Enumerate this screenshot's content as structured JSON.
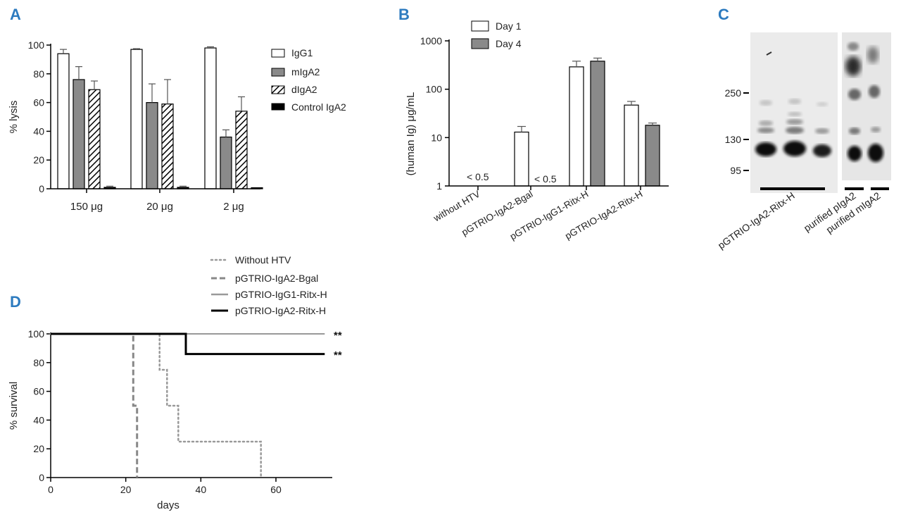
{
  "colors": {
    "panel_letter": "#2d7bbf",
    "axis": "#000000",
    "text": "#222222",
    "bar_white": "#ffffff",
    "bar_gray": "#8a8a8a",
    "bar_black": "#000000",
    "error_bar": "#555555",
    "line_gray": "#999999",
    "line_gray_dark": "#888888",
    "line_black": "#000000",
    "blot_bg": "#e9e9e9",
    "band_dark": "#111111",
    "band_mid": "#666666",
    "band_light": "#aaaaaa"
  },
  "chart_data": [
    {
      "panel": "A",
      "type": "bar",
      "ylabel": "% lysis",
      "xlabel": "",
      "ylim": [
        0,
        100
      ],
      "yticks": [
        0,
        20,
        40,
        60,
        80,
        100
      ],
      "categories": [
        "150 μg",
        "20 μg",
        "2 μg"
      ],
      "series": [
        {
          "name": "IgG1",
          "style": "white",
          "values": [
            94,
            97,
            98
          ],
          "errors": [
            3,
            0.5,
            0.8
          ]
        },
        {
          "name": "mIgA2",
          "style": "gray",
          "values": [
            76,
            60,
            36
          ],
          "errors": [
            9,
            13,
            5
          ]
        },
        {
          "name": "dIgA2",
          "style": "hatch",
          "values": [
            69,
            59,
            54
          ],
          "errors": [
            6,
            17,
            10
          ]
        },
        {
          "name": "Control IgA2",
          "style": "black",
          "values": [
            1,
            1,
            0
          ],
          "errors": [
            0.8,
            0.8,
            0
          ]
        }
      ],
      "legend": [
        "IgG1",
        "mIgA2",
        "dIgA2",
        "Control IgA2"
      ]
    },
    {
      "panel": "B",
      "type": "bar",
      "yscale": "log",
      "ylabel": "(human Ig) μg/mL",
      "ylim": [
        1,
        1000
      ],
      "yticks": [
        "1",
        "10",
        "100",
        "1000"
      ],
      "categories": [
        "without HTV",
        "pGTRIO-IgA2-Bgal",
        "pGTRIO-IgG1-Ritx-H",
        "pGTRIO-IgA2-Ritx-H"
      ],
      "series": [
        {
          "name": "Day 1",
          "style": "white",
          "values": [
            null,
            13,
            290,
            47
          ],
          "errors": [
            null,
            4,
            90,
            9
          ]
        },
        {
          "name": "Day 4",
          "style": "gray",
          "values": [
            null,
            null,
            380,
            18
          ],
          "errors": [
            null,
            null,
            60,
            2
          ]
        }
      ],
      "annotations": [
        "< 0.5",
        "< 0.5"
      ]
    },
    {
      "panel": "C",
      "type": "blot",
      "markers": [
        "250",
        "130",
        "95"
      ],
      "lane_labels": [
        "pGTRIO-IgA2-Ritx-H",
        "purified pIgA2",
        "purified mIgA2"
      ]
    },
    {
      "panel": "D",
      "type": "line",
      "xlabel": "days",
      "ylabel": "% survival",
      "xlim": [
        0,
        75
      ],
      "ylim": [
        0,
        100
      ],
      "xticks": [
        0,
        20,
        40,
        60
      ],
      "yticks": [
        0,
        20,
        40,
        60,
        80,
        100
      ],
      "series": [
        {
          "name": "Without HTV",
          "style": "dotted",
          "x": [
            0,
            29,
            29,
            31,
            31,
            34,
            34,
            56,
            56
          ],
          "y": [
            100,
            100,
            75,
            75,
            50,
            50,
            25,
            25,
            0
          ]
        },
        {
          "name": "pGTRIO-IgA2-Bgal",
          "style": "dashed",
          "x": [
            0,
            22,
            22,
            23,
            23
          ],
          "y": [
            100,
            100,
            50,
            50,
            0
          ]
        },
        {
          "name": "pGTRIO-IgG1-Ritx-H",
          "style": "solid-gray",
          "x": [
            0,
            73
          ],
          "y": [
            100,
            100
          ]
        },
        {
          "name": "pGTRIO-IgA2-Ritx-H",
          "style": "solid-black",
          "x": [
            0,
            36,
            36,
            73
          ],
          "y": [
            100,
            100,
            86,
            86
          ]
        }
      ],
      "significance": [
        "**",
        "**"
      ]
    }
  ],
  "panel_labels": {
    "a": "A",
    "b": "B",
    "c": "C",
    "d": "D"
  }
}
